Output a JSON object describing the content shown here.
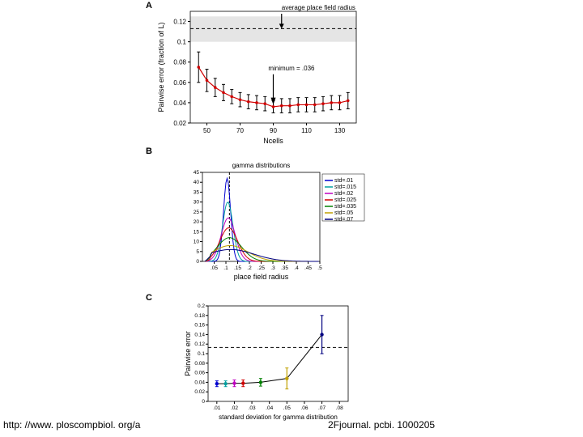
{
  "panelA": {
    "label": "A",
    "type": "line-errorbar",
    "xlabel": "Ncells",
    "ylabel": "Pairwise error (fraction of L)",
    "xlim": [
      40,
      140
    ],
    "ylim": [
      0.02,
      0.13
    ],
    "xticks": [
      50,
      70,
      90,
      110,
      130
    ],
    "yticks": [
      0.02,
      0.04,
      0.06,
      0.08,
      0.1,
      0.12
    ],
    "shaded_band": {
      "ymin": 0.1,
      "ymax": 0.125,
      "color": "#e5e5e5"
    },
    "hline": {
      "y": 0.113,
      "dash": "4,3",
      "color": "#000000"
    },
    "annotation_top": "average place field radius",
    "annotation_min": "minimum = .036",
    "arrow_top_x": 95,
    "arrow_min_x": 90,
    "line_color": "#d00000",
    "marker_color": "#d00000",
    "error_color": "#000000",
    "x": [
      45,
      50,
      55,
      60,
      65,
      70,
      75,
      80,
      85,
      90,
      95,
      100,
      105,
      110,
      115,
      120,
      125,
      130,
      135
    ],
    "y": [
      0.075,
      0.062,
      0.055,
      0.05,
      0.046,
      0.043,
      0.041,
      0.04,
      0.039,
      0.036,
      0.037,
      0.037,
      0.038,
      0.038,
      0.038,
      0.039,
      0.04,
      0.04,
      0.042
    ],
    "err": [
      0.015,
      0.011,
      0.009,
      0.008,
      0.007,
      0.007,
      0.007,
      0.007,
      0.007,
      0.006,
      0.007,
      0.007,
      0.007,
      0.007,
      0.007,
      0.007,
      0.007,
      0.007,
      0.008
    ]
  },
  "panelB": {
    "label": "B",
    "type": "line-multi",
    "title": "gamma distributions",
    "xlabel": "place field radius",
    "ylabel": "",
    "xlim": [
      0.0,
      0.5
    ],
    "ylim": [
      0,
      45
    ],
    "xticks": [
      0.05,
      0.1,
      0.15,
      0.2,
      0.25,
      0.3,
      0.35,
      0.4,
      0.45,
      0.5
    ],
    "xtick_labels": [
      ".05",
      ".1",
      ".15",
      ".2",
      ".25",
      ".3",
      ".35",
      ".4",
      ".45",
      ".5"
    ],
    "yticks": [
      0,
      5,
      10,
      15,
      20,
      25,
      30,
      35,
      40,
      45
    ],
    "vline": {
      "x": 0.115,
      "dash": "3,2",
      "color": "#000000"
    },
    "legend": [
      {
        "label": "std=.01",
        "color": "#0000d0"
      },
      {
        "label": "std=.015",
        "color": "#00a0a0"
      },
      {
        "label": "std=.02",
        "color": "#c000c0"
      },
      {
        "label": "std=.025",
        "color": "#d00000"
      },
      {
        "label": "std=.035",
        "color": "#008000"
      },
      {
        "label": "std=.05",
        "color": "#c0a000"
      },
      {
        "label": "std=.07",
        "color": "#000080"
      }
    ],
    "curves": [
      {
        "color": "#0000d0",
        "peak_x": 0.105,
        "peak_y": 42,
        "spread": 0.015
      },
      {
        "color": "#00a0a0",
        "peak_x": 0.108,
        "peak_y": 30,
        "spread": 0.022
      },
      {
        "color": "#c000c0",
        "peak_x": 0.11,
        "peak_y": 22,
        "spread": 0.03
      },
      {
        "color": "#d00000",
        "peak_x": 0.112,
        "peak_y": 17,
        "spread": 0.038
      },
      {
        "color": "#008000",
        "peak_x": 0.115,
        "peak_y": 12,
        "spread": 0.052
      },
      {
        "color": "#c0a000",
        "peak_x": 0.118,
        "peak_y": 8,
        "spread": 0.075
      },
      {
        "color": "#000080",
        "peak_x": 0.12,
        "peak_y": 6,
        "spread": 0.1
      }
    ]
  },
  "panelC": {
    "label": "C",
    "type": "line-errorbar",
    "xlabel": "standard deviation for gamma distribution",
    "ylabel": "Pairwise error",
    "xlim": [
      0.005,
      0.085
    ],
    "ylim": [
      0,
      0.2
    ],
    "xticks": [
      0.01,
      0.02,
      0.03,
      0.04,
      0.05,
      0.06,
      0.07,
      0.08
    ],
    "xtick_labels": [
      ".01",
      ".02",
      ".03",
      ".04",
      ".05",
      ".06",
      ".07",
      ".08"
    ],
    "yticks": [
      0,
      0.02,
      0.04,
      0.06,
      0.08,
      0.1,
      0.12,
      0.14,
      0.16,
      0.18,
      0.2
    ],
    "hline": {
      "y": 0.113,
      "dash": "4,3",
      "color": "#000000"
    },
    "line_color": "#000000",
    "x": [
      0.01,
      0.015,
      0.02,
      0.025,
      0.035,
      0.05,
      0.07
    ],
    "y": [
      0.037,
      0.037,
      0.038,
      0.038,
      0.04,
      0.048,
      0.14
    ],
    "err": [
      0.006,
      0.006,
      0.007,
      0.007,
      0.008,
      0.022,
      0.04
    ],
    "colors": [
      "#0000d0",
      "#00a0a0",
      "#c000c0",
      "#d00000",
      "#008000",
      "#c0a000",
      "#000080"
    ]
  },
  "footer": {
    "left": "http: //www. ploscompbiol. org/a",
    "right": "2Fjournal. pcbi. 1000205"
  }
}
